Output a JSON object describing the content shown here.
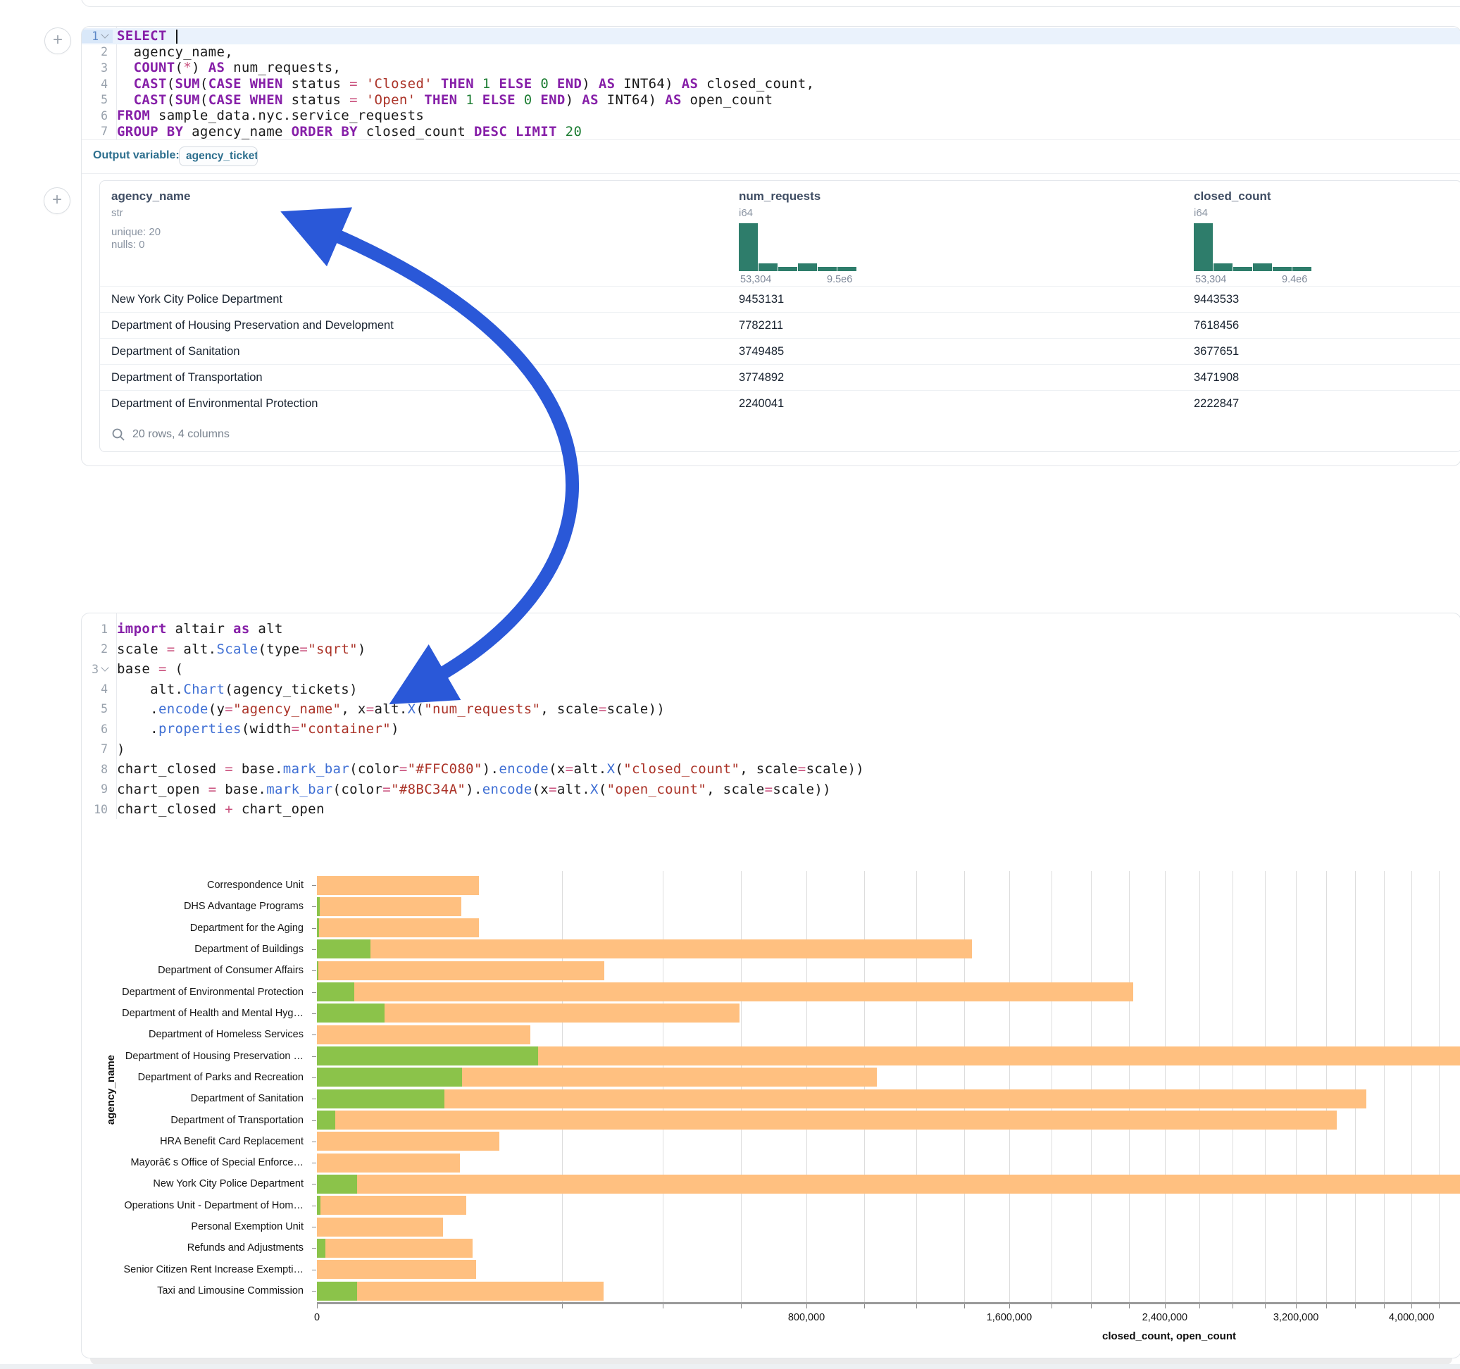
{
  "sql_cell": {
    "fold_lines": [
      0
    ],
    "code": [
      [
        [
          "k",
          "SELECT"
        ],
        [
          "t",
          " "
        ],
        [
          "caret",
          ""
        ]
      ],
      [
        [
          "t",
          "  agency_name,"
        ]
      ],
      [
        [
          "t",
          "  "
        ],
        [
          "k",
          "COUNT"
        ],
        [
          "t",
          "("
        ],
        [
          "o",
          "*"
        ],
        [
          "t",
          ") "
        ],
        [
          "k",
          "AS"
        ],
        [
          "t",
          " num_requests,"
        ]
      ],
      [
        [
          "t",
          "  "
        ],
        [
          "k",
          "CAST"
        ],
        [
          "t",
          "("
        ],
        [
          "k",
          "SUM"
        ],
        [
          "t",
          "("
        ],
        [
          "k",
          "CASE"
        ],
        [
          "t",
          " "
        ],
        [
          "k",
          "WHEN"
        ],
        [
          "t",
          " status "
        ],
        [
          "o",
          "="
        ],
        [
          "t",
          " "
        ],
        [
          "s",
          "'Closed'"
        ],
        [
          "t",
          " "
        ],
        [
          "k",
          "THEN"
        ],
        [
          "t",
          " "
        ],
        [
          "n",
          "1"
        ],
        [
          "t",
          " "
        ],
        [
          "k",
          "ELSE"
        ],
        [
          "t",
          " "
        ],
        [
          "n",
          "0"
        ],
        [
          "t",
          " "
        ],
        [
          "k",
          "END"
        ],
        [
          "t",
          ") "
        ],
        [
          "k",
          "AS"
        ],
        [
          "t",
          " INT64) "
        ],
        [
          "k",
          "AS"
        ],
        [
          "t",
          " closed_count,"
        ]
      ],
      [
        [
          "t",
          "  "
        ],
        [
          "k",
          "CAST"
        ],
        [
          "t",
          "("
        ],
        [
          "k",
          "SUM"
        ],
        [
          "t",
          "("
        ],
        [
          "k",
          "CASE"
        ],
        [
          "t",
          " "
        ],
        [
          "k",
          "WHEN"
        ],
        [
          "t",
          " status "
        ],
        [
          "o",
          "="
        ],
        [
          "t",
          " "
        ],
        [
          "s",
          "'Open'"
        ],
        [
          "t",
          " "
        ],
        [
          "k",
          "THEN"
        ],
        [
          "t",
          " "
        ],
        [
          "n",
          "1"
        ],
        [
          "t",
          " "
        ],
        [
          "k",
          "ELSE"
        ],
        [
          "t",
          " "
        ],
        [
          "n",
          "0"
        ],
        [
          "t",
          " "
        ],
        [
          "k",
          "END"
        ],
        [
          "t",
          ") "
        ],
        [
          "k",
          "AS"
        ],
        [
          "t",
          " INT64) "
        ],
        [
          "k",
          "AS"
        ],
        [
          "t",
          " open_count"
        ]
      ],
      [
        [
          "k",
          "FROM"
        ],
        [
          "t",
          " sample_data.nyc.service_requests"
        ]
      ],
      [
        [
          "k",
          "GROUP"
        ],
        [
          "t",
          " "
        ],
        [
          "k",
          "BY"
        ],
        [
          "t",
          " agency_name "
        ],
        [
          "k",
          "ORDER"
        ],
        [
          "t",
          " "
        ],
        [
          "k",
          "BY"
        ],
        [
          "t",
          " closed_count "
        ],
        [
          "k",
          "DESC"
        ],
        [
          "t",
          " "
        ],
        [
          "k",
          "LIMIT"
        ],
        [
          "t",
          " "
        ],
        [
          "n",
          "20"
        ]
      ]
    ],
    "output_variable": {
      "label": "Output variable:",
      "value": "agency_tickets"
    }
  },
  "table": {
    "columns": [
      {
        "name": "agency_name",
        "type": "str",
        "meta_lines": [
          "unique: 20",
          "nulls: 0"
        ]
      },
      {
        "name": "num_requests",
        "type": "i64",
        "hist": {
          "bars": [
            68,
            11,
            6,
            11,
            6,
            6
          ],
          "min_label": "53,304",
          "max_label": "9.5e6"
        }
      },
      {
        "name": "closed_count",
        "type": "i64",
        "hist": {
          "bars": [
            68,
            11,
            6,
            11,
            6,
            6
          ],
          "min_label": "53,304",
          "max_label": "9.4e6"
        }
      }
    ],
    "rows": [
      [
        "New York City Police Department",
        "9453131",
        "9443533"
      ],
      [
        "Department of Housing Preservation and Development",
        "7782211",
        "7618456"
      ],
      [
        "Department of Sanitation",
        "3749485",
        "3677651"
      ],
      [
        "Department of Transportation",
        "3774892",
        "3471908"
      ],
      [
        "Department of Environmental Protection",
        "2240041",
        "2222847"
      ]
    ],
    "footer": "20 rows, 4 columns"
  },
  "python_cell": {
    "fold_lines": [
      2
    ],
    "code": [
      [
        [
          "k",
          "import"
        ],
        [
          "t",
          " altair "
        ],
        [
          "k",
          "as"
        ],
        [
          "t",
          " alt"
        ]
      ],
      [
        [
          "t",
          "scale "
        ],
        [
          "o",
          "="
        ],
        [
          "t",
          " alt."
        ],
        [
          "f",
          "Scale"
        ],
        [
          "t",
          "(type"
        ],
        [
          "o",
          "="
        ],
        [
          "s",
          "\"sqrt\""
        ],
        [
          "t",
          ")"
        ]
      ],
      [
        [
          "t",
          "base "
        ],
        [
          "o",
          "="
        ],
        [
          "t",
          " ("
        ]
      ],
      [
        [
          "t",
          "    alt."
        ],
        [
          "f",
          "Chart"
        ],
        [
          "t",
          "(agency_tickets)"
        ]
      ],
      [
        [
          "t",
          "    ."
        ],
        [
          "f",
          "encode"
        ],
        [
          "t",
          "(y"
        ],
        [
          "o",
          "="
        ],
        [
          "s",
          "\"agency_name\""
        ],
        [
          "t",
          ", x"
        ],
        [
          "o",
          "="
        ],
        [
          "t",
          "alt."
        ],
        [
          "f",
          "X"
        ],
        [
          "t",
          "("
        ],
        [
          "s",
          "\"num_requests\""
        ],
        [
          "t",
          ", scale"
        ],
        [
          "o",
          "="
        ],
        [
          "t",
          "scale))"
        ]
      ],
      [
        [
          "t",
          "    ."
        ],
        [
          "f",
          "properties"
        ],
        [
          "t",
          "(width"
        ],
        [
          "o",
          "="
        ],
        [
          "s",
          "\"container\""
        ],
        [
          "t",
          ")"
        ]
      ],
      [
        [
          "t",
          ")"
        ]
      ],
      [
        [
          "t",
          "chart_closed "
        ],
        [
          "o",
          "="
        ],
        [
          "t",
          " base."
        ],
        [
          "f",
          "mark_bar"
        ],
        [
          "t",
          "(color"
        ],
        [
          "o",
          "="
        ],
        [
          "s",
          "\"#FFC080\""
        ],
        [
          "t",
          ")."
        ],
        [
          "f",
          "encode"
        ],
        [
          "t",
          "(x"
        ],
        [
          "o",
          "="
        ],
        [
          "t",
          "alt."
        ],
        [
          "f",
          "X"
        ],
        [
          "t",
          "("
        ],
        [
          "s",
          "\"closed_count\""
        ],
        [
          "t",
          ", scale"
        ],
        [
          "o",
          "="
        ],
        [
          "t",
          "scale))"
        ]
      ],
      [
        [
          "t",
          "chart_open "
        ],
        [
          "o",
          "="
        ],
        [
          "t",
          " base."
        ],
        [
          "f",
          "mark_bar"
        ],
        [
          "t",
          "(color"
        ],
        [
          "o",
          "="
        ],
        [
          "s",
          "\"#8BC34A\""
        ],
        [
          "t",
          ")."
        ],
        [
          "f",
          "encode"
        ],
        [
          "t",
          "(x"
        ],
        [
          "o",
          "="
        ],
        [
          "t",
          "alt."
        ],
        [
          "f",
          "X"
        ],
        [
          "t",
          "("
        ],
        [
          "s",
          "\"open_count\""
        ],
        [
          "t",
          ", scale"
        ],
        [
          "o",
          "="
        ],
        [
          "t",
          "scale))"
        ]
      ],
      [
        [
          "t",
          "chart_closed "
        ],
        [
          "o",
          "+"
        ],
        [
          "t",
          " chart_open"
        ]
      ]
    ]
  },
  "chart_data": {
    "type": "bar",
    "orientation": "horizontal",
    "x_scale": "sqrt",
    "title": "",
    "xlabel": "closed_count, open_count",
    "ylabel": "agency_name",
    "categories": [
      "Correspondence Unit",
      "DHS Advantage Programs",
      "Department for the Aging",
      "Department of Buildings",
      "Department of Consumer Affairs",
      "Department of Environmental Protection",
      "Department of Health and Mental Hyg…",
      "Department of Homeless Services",
      "Department of Housing Preservation …",
      "Department of Parks and Recreation",
      "Department of Sanitation",
      "Department of Transportation",
      "HRA Benefit Card Replacement",
      "Mayorâ€ s Office of Special Enforce…",
      "New York City Police Department",
      "Operations Unit - Department of Hom…",
      "Personal Exemption Unit",
      "Refunds and Adjustments",
      "Senior Citizen Rent Increase Exempti…",
      "Taxi and Limousine Commission"
    ],
    "series": [
      {
        "name": "closed_count",
        "color": "#FFC080",
        "values": [
          87600,
          69600,
          87600,
          1433000,
          276000,
          2222847,
          596000,
          152000,
          7618456,
          1047000,
          3677651,
          3471908,
          111000,
          68300,
          9443533,
          74400,
          53304,
          81000,
          84600,
          274300
        ]
      },
      {
        "name": "open_count",
        "color": "#8BC34A",
        "values": [
          0,
          30,
          15,
          9500,
          10,
          4700,
          15300,
          0,
          163755,
          70000,
          54000,
          1100,
          0,
          0,
          5400,
          40,
          0,
          220,
          0,
          5400
        ]
      }
    ],
    "x_tick_step": 200000,
    "x_label_step": 800000,
    "x_tick_labels": [
      "0",
      "800,000",
      "1,600,000",
      "2,400,000",
      "3,200,000",
      "4,000,000"
    ],
    "grid": true,
    "legend": "none"
  },
  "annotation_arrow": {
    "color": "#2a58d8"
  }
}
